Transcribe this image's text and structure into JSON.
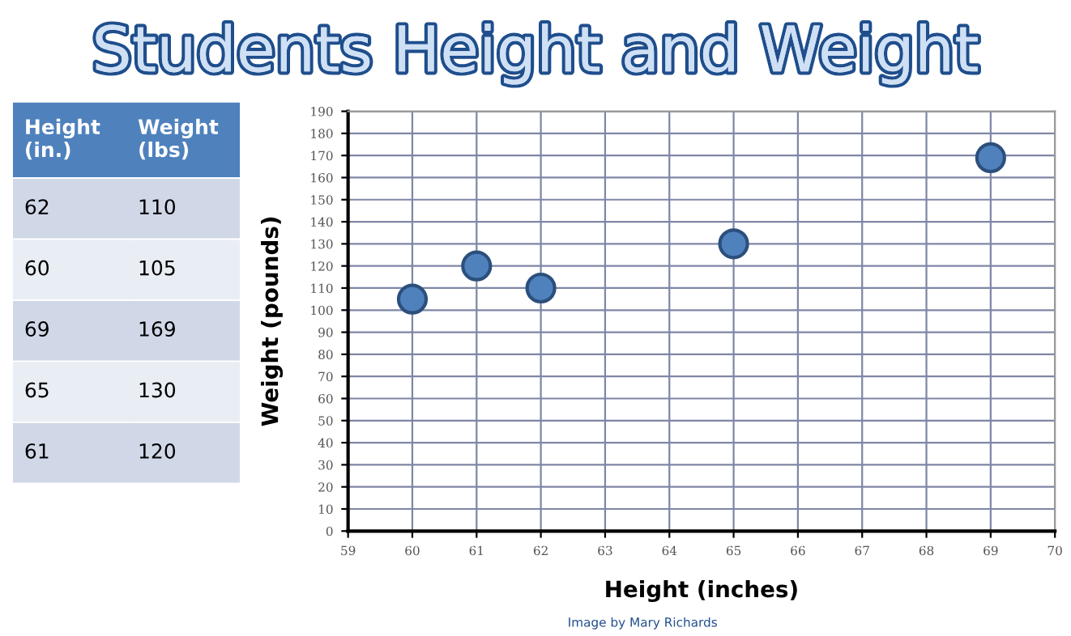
{
  "chart_data": [
    {
      "type": "other",
      "annotations": [
        "Height\n(in.)",
        "Weight\n(lbs)",
        "62",
        "110",
        "60",
        "105",
        "69",
        "169",
        "65",
        "130",
        "61",
        "120"
      ]
    },
    {
      "type": "scatter",
      "title": "Students Height and Weight",
      "xlabel": "Height (inches)",
      "ylabel": "Weight (pounds)",
      "x": [
        62,
        60,
        69,
        65,
        61
      ],
      "series": [
        {
          "color": "#4f81bd",
          "values": [
            110,
            105,
            169,
            130,
            120
          ]
        }
      ],
      "xlim": [
        59,
        70
      ],
      "xticks": [
        59,
        60,
        61,
        62,
        63,
        64,
        65,
        66,
        67,
        68,
        69,
        70
      ],
      "ylim": [
        0,
        190
      ],
      "yticks": [
        0,
        10,
        20,
        30,
        40,
        50,
        60,
        70,
        80,
        90,
        100,
        110,
        120,
        130,
        140,
        150,
        160,
        170,
        180,
        190
      ],
      "grid": true,
      "marker": "circle",
      "annotations": [
        "Image by Mary Richards"
      ]
    }
  ]
}
